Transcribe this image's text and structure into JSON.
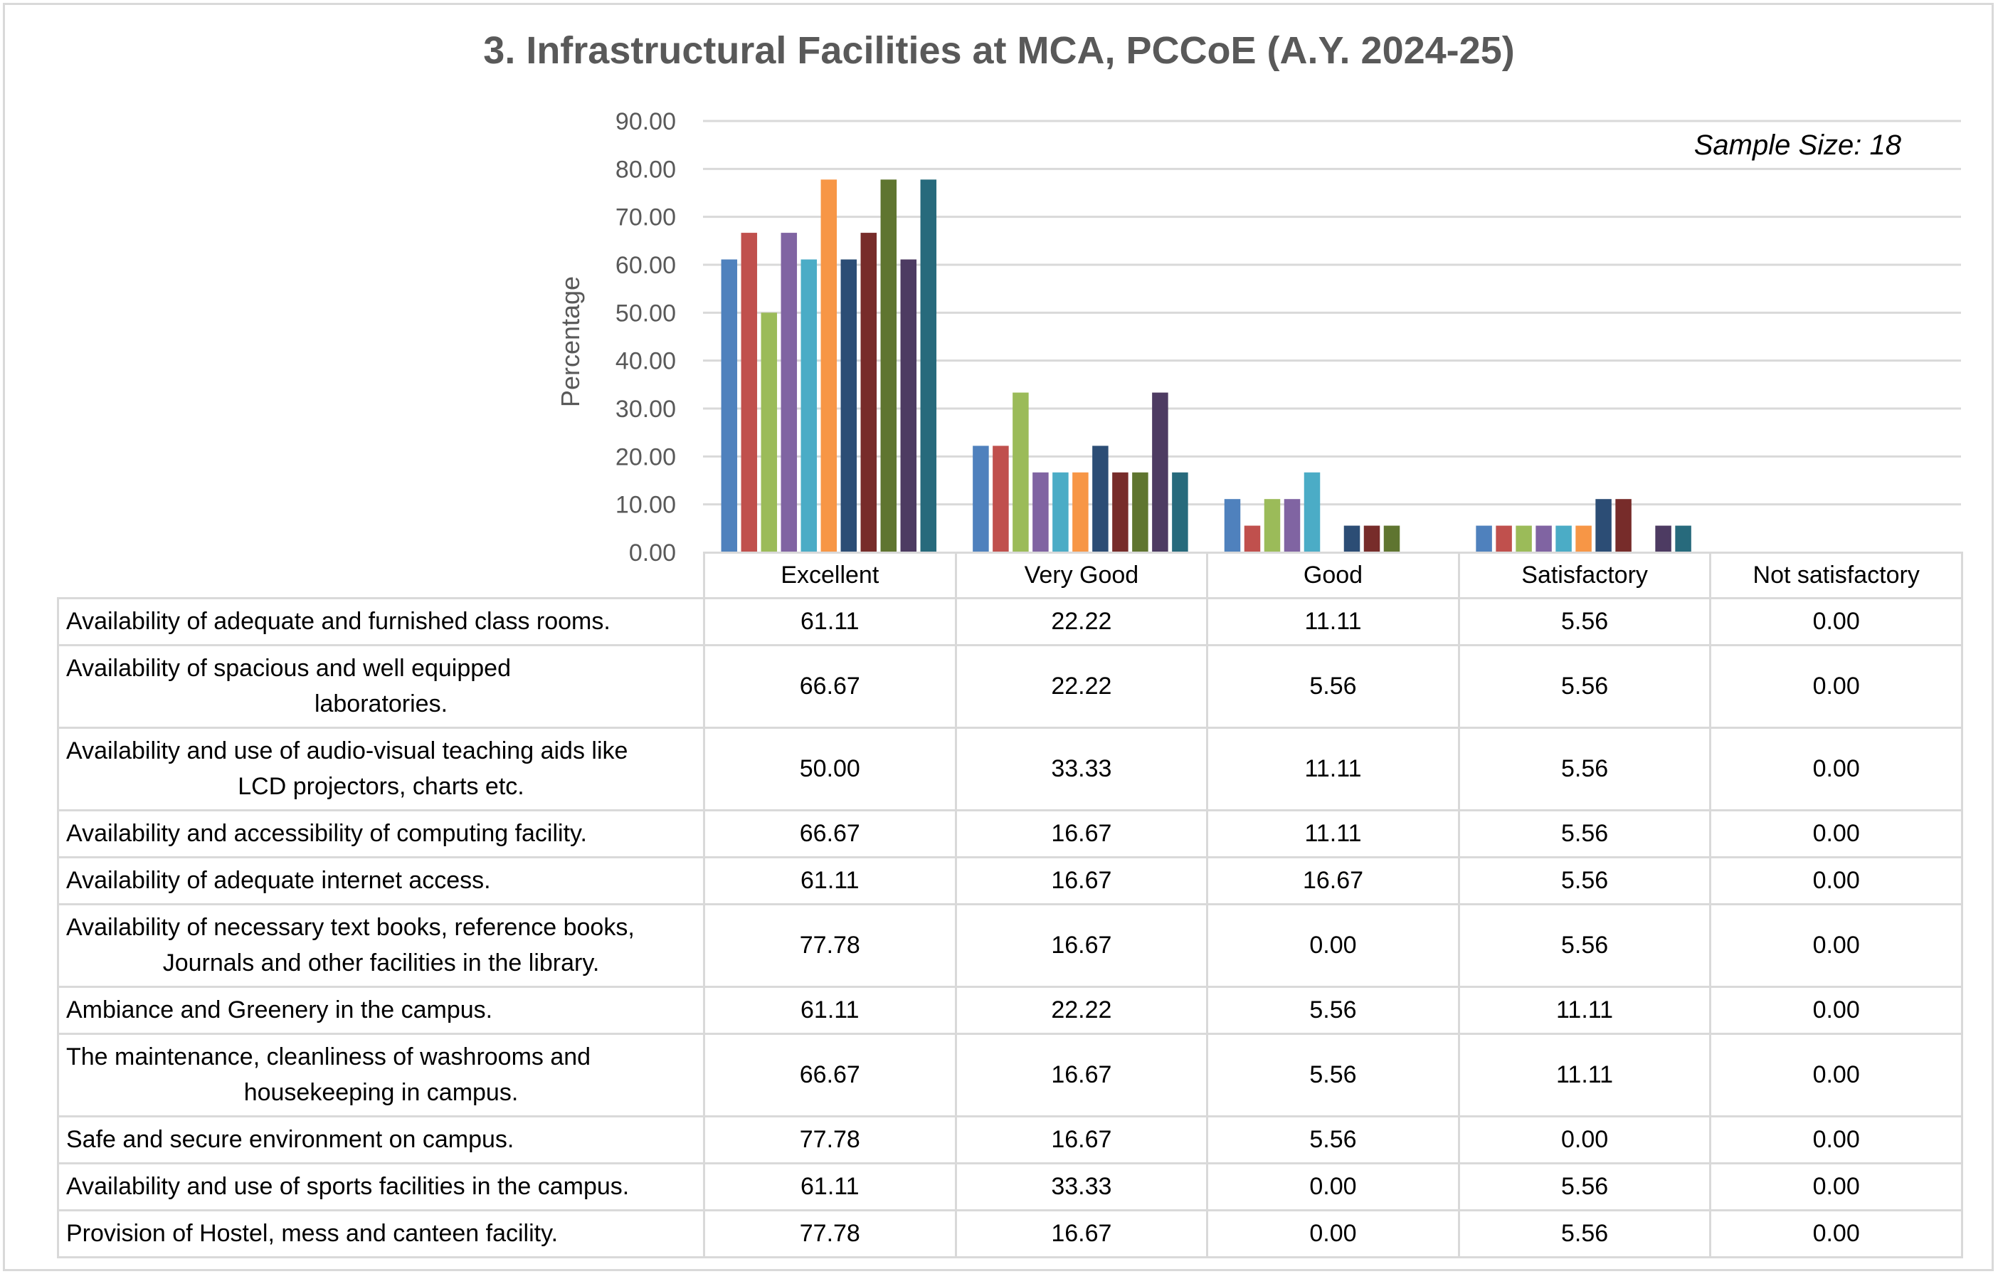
{
  "chart_data": {
    "type": "bar",
    "title": "3. Infrastructural Facilities at MCA, PCCoE (A.Y. 2024-25)",
    "annotation": "Sample Size: 18",
    "xlabel": "",
    "ylabel": "Percentage",
    "ylim": [
      0,
      90
    ],
    "yticks": [
      "0.00",
      "10.00",
      "20.00",
      "30.00",
      "40.00",
      "50.00",
      "60.00",
      "70.00",
      "80.00",
      "90.00"
    ],
    "grid": true,
    "legend": "data-table-below",
    "categories": [
      "Excellent",
      "Very Good",
      "Good",
      "Satisfactory",
      "Not satisfactory"
    ],
    "series": [
      {
        "name": "Availability of adequate and furnished class rooms.",
        "color": "#4f81bd",
        "values": [
          61.11,
          22.22,
          11.11,
          5.56,
          0.0
        ],
        "labels": [
          "61.11",
          "22.22",
          "11.11",
          "5.56",
          "0.00"
        ]
      },
      {
        "name": "Availability of spacious and well equipped laboratories.",
        "color": "#c0504d",
        "values": [
          66.67,
          22.22,
          5.56,
          5.56,
          0.0
        ],
        "labels": [
          "66.67",
          "22.22",
          "5.56",
          "5.56",
          "0.00"
        ]
      },
      {
        "name": "Availability and use of audio-visual teaching aids like LCD projectors, charts etc.",
        "color": "#9bbb59",
        "values": [
          50.0,
          33.33,
          11.11,
          5.56,
          0.0
        ],
        "labels": [
          "50.00",
          "33.33",
          "11.11",
          "5.56",
          "0.00"
        ]
      },
      {
        "name": "Availability and accessibility of computing facility.",
        "color": "#8064a2",
        "values": [
          66.67,
          16.67,
          11.11,
          5.56,
          0.0
        ],
        "labels": [
          "66.67",
          "16.67",
          "11.11",
          "5.56",
          "0.00"
        ]
      },
      {
        "name": "Availability of adequate internet access.",
        "color": "#4bacc6",
        "values": [
          61.11,
          16.67,
          16.67,
          5.56,
          0.0
        ],
        "labels": [
          "61.11",
          "16.67",
          "16.67",
          "5.56",
          "0.00"
        ]
      },
      {
        "name": "Availability of necessary text books, reference books, Journals and other facilities in the library.",
        "color": "#f79646",
        "values": [
          77.78,
          16.67,
          0.0,
          5.56,
          0.0
        ],
        "labels": [
          "77.78",
          "16.67",
          "0.00",
          "5.56",
          "0.00"
        ]
      },
      {
        "name": "Ambiance and Greenery in the campus.",
        "color": "#2c4d75",
        "values": [
          61.11,
          22.22,
          5.56,
          11.11,
          0.0
        ],
        "labels": [
          "61.11",
          "22.22",
          "5.56",
          "11.11",
          "0.00"
        ]
      },
      {
        "name": "The maintenance, cleanliness of washrooms and housekeeping in campus.",
        "color": "#772c2a",
        "values": [
          66.67,
          16.67,
          5.56,
          11.11,
          0.0
        ],
        "labels": [
          "66.67",
          "16.67",
          "5.56",
          "11.11",
          "0.00"
        ]
      },
      {
        "name": "Safe and secure environment on campus.",
        "color": "#5f7530",
        "values": [
          77.78,
          16.67,
          5.56,
          0.0,
          0.0
        ],
        "labels": [
          "77.78",
          "16.67",
          "5.56",
          "0.00",
          "0.00"
        ]
      },
      {
        "name": "Availability and use of sports facilities in the campus.",
        "color": "#4d3b62",
        "values": [
          61.11,
          33.33,
          0.0,
          5.56,
          0.0
        ],
        "labels": [
          "61.11",
          "33.33",
          "0.00",
          "5.56",
          "0.00"
        ]
      },
      {
        "name": "Provision of Hostel, mess and canteen facility.",
        "color": "#276a7c",
        "values": [
          77.78,
          16.67,
          0.0,
          5.56,
          0.0
        ],
        "labels": [
          "77.78",
          "16.67",
          "0.00",
          "5.56",
          "0.00"
        ]
      }
    ]
  },
  "table": {
    "row_labels_display": [
      [
        "Availability of adequate and furnished class rooms."
      ],
      [
        "Availability of spacious and well equipped",
        "laboratories."
      ],
      [
        "Availability and use of audio-visual teaching aids like",
        "LCD projectors, charts etc."
      ],
      [
        "Availability and accessibility of computing facility."
      ],
      [
        "Availability of adequate internet access."
      ],
      [
        "Availability of necessary text books, reference books,",
        "Journals and other facilities in the library."
      ],
      [
        "Ambiance and Greenery in the campus."
      ],
      [
        "The maintenance, cleanliness of washrooms and",
        "housekeeping in campus."
      ],
      [
        "Safe and secure environment on campus."
      ],
      [
        "Availability and use of sports facilities in the campus."
      ],
      [
        "Provision of Hostel, mess and canteen facility."
      ]
    ]
  }
}
